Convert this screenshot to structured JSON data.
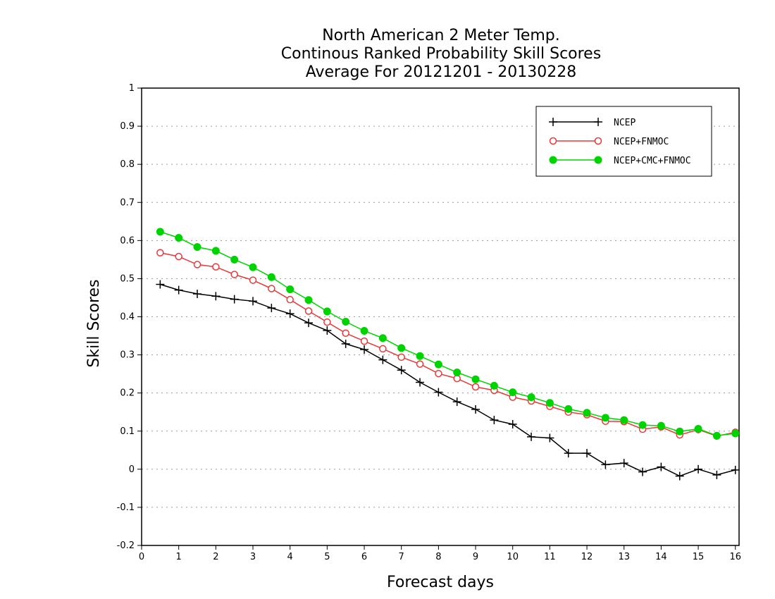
{
  "chart_data": {
    "type": "line",
    "title": [
      "North American 2 Meter Temp.",
      "Continous Ranked Probability Skill Scores",
      "Average For 20121201 - 20130228"
    ],
    "xlabel": "Forecast days",
    "ylabel": "Skill Scores",
    "xlim": [
      0,
      16.1
    ],
    "ylim": [
      -0.2,
      1
    ],
    "x_ticks": [
      0,
      1,
      2,
      3,
      4,
      5,
      6,
      7,
      8,
      9,
      10,
      11,
      12,
      13,
      14,
      15,
      16
    ],
    "y_ticks": [
      -0.2,
      -0.1,
      0,
      0.1,
      0.2,
      0.3,
      0.4,
      0.5,
      0.6,
      0.7,
      0.8,
      0.9,
      1
    ],
    "y_tick_labels": [
      "-0.2",
      "-0.1",
      "0",
      "0.1",
      "0.2",
      "0.3",
      "0.4",
      "0.5",
      "0.6",
      "0.7",
      "0.8",
      "0.9",
      "1"
    ],
    "grid": "horizontal-dotted",
    "legend_position": "top-right",
    "x": [
      0.5,
      1,
      1.5,
      2,
      2.5,
      3,
      3.5,
      4,
      4.5,
      5,
      5.5,
      6,
      6.5,
      7,
      7.5,
      8,
      8.5,
      9,
      9.5,
      10,
      10.5,
      11,
      11.5,
      12,
      12.5,
      13,
      13.5,
      14,
      14.5,
      15,
      15.5,
      16
    ],
    "series": [
      {
        "name": "NCEP",
        "color": "#000000",
        "marker": "plus",
        "values": [
          0.485,
          0.47,
          0.46,
          0.454,
          0.446,
          0.441,
          0.423,
          0.408,
          0.384,
          0.364,
          0.329,
          0.314,
          0.287,
          0.26,
          0.228,
          0.202,
          0.177,
          0.157,
          0.129,
          0.118,
          0.085,
          0.082,
          0.042,
          0.042,
          0.012,
          0.016,
          -0.007,
          0.006,
          -0.018,
          0.0,
          -0.015,
          -0.002
        ]
      },
      {
        "name": "NCEP+FNMOC",
        "color": "#e8393a",
        "marker": "open-circle",
        "values": [
          0.568,
          0.558,
          0.537,
          0.531,
          0.511,
          0.496,
          0.474,
          0.445,
          0.415,
          0.386,
          0.357,
          0.336,
          0.316,
          0.294,
          0.276,
          0.251,
          0.238,
          0.216,
          0.207,
          0.189,
          0.179,
          0.165,
          0.15,
          0.143,
          0.126,
          0.125,
          0.105,
          0.111,
          0.09,
          0.104,
          0.087,
          0.097
        ]
      },
      {
        "name": "NCEP+CMC+FNMOC",
        "color": "#00d400",
        "marker": "filled-circle",
        "values": [
          0.623,
          0.607,
          0.583,
          0.573,
          0.55,
          0.53,
          0.504,
          0.472,
          0.444,
          0.414,
          0.387,
          0.363,
          0.344,
          0.318,
          0.297,
          0.275,
          0.254,
          0.236,
          0.219,
          0.202,
          0.189,
          0.174,
          0.158,
          0.148,
          0.135,
          0.129,
          0.116,
          0.114,
          0.099,
          0.106,
          0.088,
          0.094
        ]
      }
    ]
  }
}
